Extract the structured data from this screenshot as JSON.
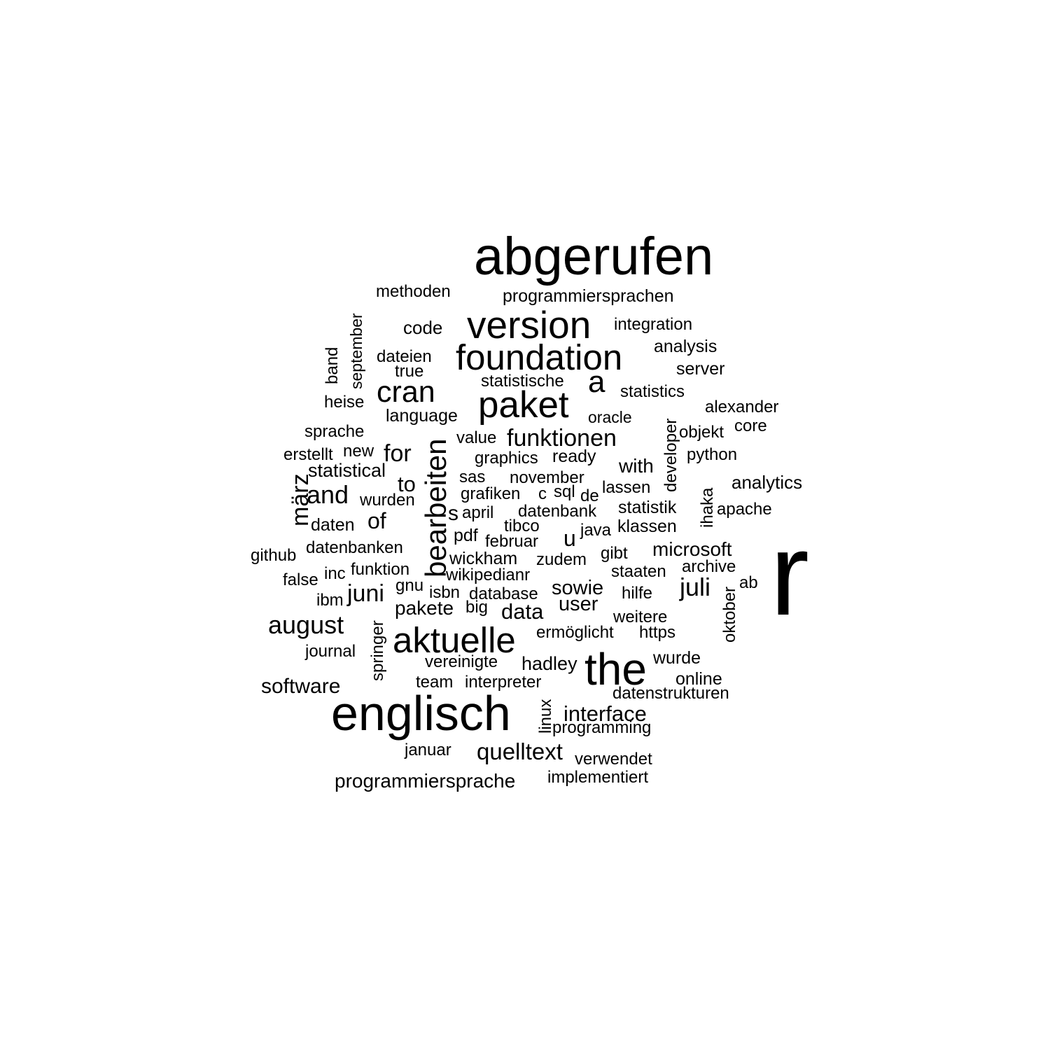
{
  "words": [
    {
      "text": "r"
    },
    {
      "text": "abgerufen"
    },
    {
      "text": "englisch"
    },
    {
      "text": "the"
    },
    {
      "text": "version"
    },
    {
      "text": "foundation"
    },
    {
      "text": "paket"
    },
    {
      "text": "aktuelle"
    },
    {
      "text": "cran"
    },
    {
      "text": "bearbeiten"
    },
    {
      "text": "a"
    },
    {
      "text": "funktionen"
    },
    {
      "text": "august"
    },
    {
      "text": "juni"
    },
    {
      "text": "juli"
    },
    {
      "text": "and"
    },
    {
      "text": "for"
    },
    {
      "text": "quelltext"
    },
    {
      "text": "software"
    },
    {
      "text": "interface"
    },
    {
      "text": "data"
    },
    {
      "text": "of"
    },
    {
      "text": "to"
    },
    {
      "text": "u"
    },
    {
      "text": "s"
    },
    {
      "text": "sowie"
    },
    {
      "text": "märz"
    },
    {
      "text": "programmiersprache"
    },
    {
      "text": "microsoft"
    },
    {
      "text": "user"
    },
    {
      "text": "hadley"
    },
    {
      "text": "pakete"
    },
    {
      "text": "with"
    },
    {
      "text": "analytics"
    },
    {
      "text": "statistical"
    },
    {
      "text": "programmiersprachen"
    },
    {
      "text": "methoden"
    },
    {
      "text": "code"
    },
    {
      "text": "integration"
    },
    {
      "text": "analysis"
    },
    {
      "text": "server"
    },
    {
      "text": "dateien"
    },
    {
      "text": "true"
    },
    {
      "text": "statistische"
    },
    {
      "text": "statistics"
    },
    {
      "text": "heise"
    },
    {
      "text": "language"
    },
    {
      "text": "oracle"
    },
    {
      "text": "alexander"
    },
    {
      "text": "sprache"
    },
    {
      "text": "objekt"
    },
    {
      "text": "core"
    },
    {
      "text": "value"
    },
    {
      "text": "erstellt"
    },
    {
      "text": "new"
    },
    {
      "text": "graphics"
    },
    {
      "text": "ready"
    },
    {
      "text": "python"
    },
    {
      "text": "sas"
    },
    {
      "text": "november"
    },
    {
      "text": "lassen"
    },
    {
      "text": "wurden"
    },
    {
      "text": "grafiken"
    },
    {
      "text": "c"
    },
    {
      "text": "sql"
    },
    {
      "text": "de"
    },
    {
      "text": "statistik"
    },
    {
      "text": "apache"
    },
    {
      "text": "daten"
    },
    {
      "text": "april"
    },
    {
      "text": "datenbank"
    },
    {
      "text": "tibco"
    },
    {
      "text": "klassen"
    },
    {
      "text": "pdf"
    },
    {
      "text": "februar"
    },
    {
      "text": "java"
    },
    {
      "text": "github"
    },
    {
      "text": "datenbanken"
    },
    {
      "text": "gibt"
    },
    {
      "text": "wickham"
    },
    {
      "text": "zudem"
    },
    {
      "text": "archive"
    },
    {
      "text": "funktion"
    },
    {
      "text": "staaten"
    },
    {
      "text": "false"
    },
    {
      "text": "inc"
    },
    {
      "text": "wikipedianr"
    },
    {
      "text": "ab"
    },
    {
      "text": "gnu"
    },
    {
      "text": "isbn"
    },
    {
      "text": "database"
    },
    {
      "text": "hilfe"
    },
    {
      "text": "ibm"
    },
    {
      "text": "big"
    },
    {
      "text": "weitere"
    },
    {
      "text": "ermöglicht"
    },
    {
      "text": "https"
    },
    {
      "text": "journal"
    },
    {
      "text": "vereinigte"
    },
    {
      "text": "wurde"
    },
    {
      "text": "team"
    },
    {
      "text": "interpreter"
    },
    {
      "text": "online"
    },
    {
      "text": "datenstrukturen"
    },
    {
      "text": "programming"
    },
    {
      "text": "januar"
    },
    {
      "text": "verwendet"
    },
    {
      "text": "implementiert"
    },
    {
      "text": "september"
    },
    {
      "text": "band"
    },
    {
      "text": "developer"
    },
    {
      "text": "ihaka"
    },
    {
      "text": "oktober"
    },
    {
      "text": "springer"
    },
    {
      "text": "linux"
    }
  ]
}
